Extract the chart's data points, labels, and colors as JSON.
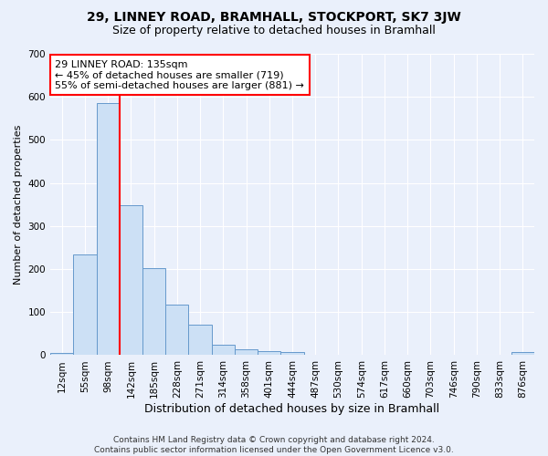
{
  "title1": "29, LINNEY ROAD, BRAMHALL, STOCKPORT, SK7 3JW",
  "title2": "Size of property relative to detached houses in Bramhall",
  "xlabel": "Distribution of detached houses by size in Bramhall",
  "ylabel": "Number of detached properties",
  "footer": "Contains HM Land Registry data © Crown copyright and database right 2024.\nContains public sector information licensed under the Open Government Licence v3.0.",
  "bin_labels": [
    "12sqm",
    "55sqm",
    "98sqm",
    "142sqm",
    "185sqm",
    "228sqm",
    "271sqm",
    "314sqm",
    "358sqm",
    "401sqm",
    "444sqm",
    "487sqm",
    "530sqm",
    "574sqm",
    "617sqm",
    "660sqm",
    "703sqm",
    "746sqm",
    "790sqm",
    "833sqm",
    "876sqm"
  ],
  "bar_values": [
    5,
    235,
    585,
    348,
    202,
    117,
    70,
    25,
    13,
    10,
    8,
    0,
    0,
    0,
    0,
    0,
    0,
    0,
    0,
    0,
    8
  ],
  "bar_color": "#cce0f5",
  "bar_edge_color": "#6699cc",
  "vline_color": "red",
  "vline_bar_index": 2,
  "annotation_text": "29 LINNEY ROAD: 135sqm\n← 45% of detached houses are smaller (719)\n55% of semi-detached houses are larger (881) →",
  "annotation_box_color": "white",
  "annotation_box_edge_color": "red",
  "ylim": [
    0,
    700
  ],
  "yticks": [
    0,
    100,
    200,
    300,
    400,
    500,
    600,
    700
  ],
  "background_color": "#eaf0fb",
  "plot_bg_color": "#eaf0fb",
  "title1_fontsize": 10,
  "title2_fontsize": 9,
  "xlabel_fontsize": 9,
  "ylabel_fontsize": 8,
  "tick_fontsize": 7.5,
  "annotation_fontsize": 8
}
